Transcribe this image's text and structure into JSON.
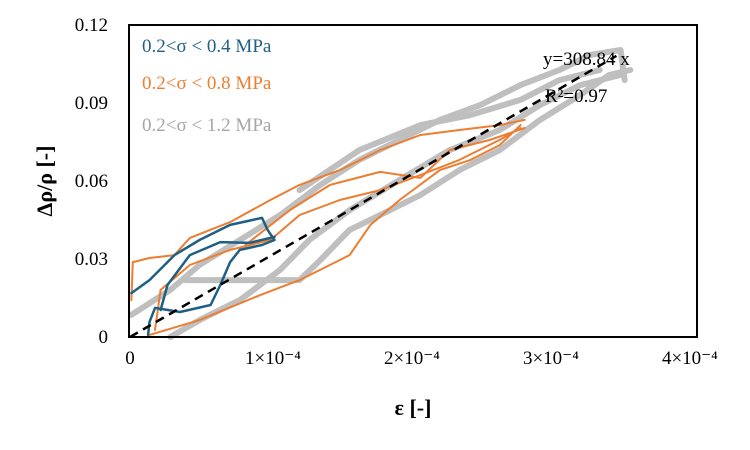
{
  "chart_data": {
    "type": "line",
    "xlabel": "ε [-]",
    "ylabel": "Δρ/ρ [-]",
    "xlim": [
      0,
      0.000408
    ],
    "ylim": [
      0,
      0.12
    ],
    "x_ticks": [
      0,
      0.0001,
      0.0002,
      0.0003,
      0.0004
    ],
    "x_tick_labels": [
      "0",
      "1×10⁻⁴",
      "2×10⁻⁴",
      "3×10⁻⁴",
      "4×10⁻⁴"
    ],
    "y_ticks": [
      0,
      0.03,
      0.06,
      0.09,
      0.12
    ],
    "y_tick_labels": [
      "0",
      "0.03",
      "0.06",
      "0.09",
      "0.12"
    ],
    "grid": false,
    "legend_position": "top-left",
    "series": [
      {
        "name": "0.2<σ < 0.4 MPa",
        "color": "#1f5f86",
        "width": 2.5,
        "curves": [
          {
            "x": [
              1e-06,
              1.4e-05,
              3.2e-05,
              5e-05,
              7.2e-05,
              9.5e-05,
              9.9e-05,
              0.000104,
              9.5e-05,
              7.9e-05,
              7.2e-05,
              6.5e-05,
              5.8e-05,
              3.6e-05,
              1.8e-05,
              1.4e-05,
              1.3e-05
            ],
            "y": [
              0.0169,
              0.0219,
              0.0315,
              0.0373,
              0.0431,
              0.0458,
              0.0412,
              0.0373,
              0.0354,
              0.0335,
              0.0288,
              0.02,
              0.0123,
              0.0096,
              0.0112,
              0.0058,
              0.0008
            ]
          },
          {
            "x": [
              2.2e-05,
              2.7e-05,
              4.3e-05,
              6.5e-05,
              8.6e-05,
              0.000104
            ],
            "y": [
              0.0104,
              0.02,
              0.0315,
              0.0365,
              0.0362,
              0.0385
            ]
          }
        ]
      },
      {
        "name": "0.2<σ < 0.8 MPa",
        "color": "#ed7d31",
        "width": 2,
        "curves": [
          {
            "x": [
              1e-06,
              2e-06,
              1.4e-05,
              3.2e-05,
              4.3e-05,
              7.2e-05,
              0.000101,
              0.000122,
              0.000151,
              0.00018,
              0.000209,
              0.000237,
              0.000266,
              0.000284
            ],
            "y": [
              0.0142,
              0.0288,
              0.0304,
              0.0315,
              0.0381,
              0.0442,
              0.0527,
              0.0585,
              0.0642,
              0.0719,
              0.0777,
              0.0796,
              0.0815,
              0.0835
            ]
          },
          {
            "x": [
              1.4e-05,
              5e-05,
              9.4e-05,
              0.000122,
              0.000158,
              0.000173,
              0.000194,
              0.000223,
              0.000245,
              0.000266,
              0.000281
            ],
            "y": [
              0.0008,
              0.0065,
              0.0162,
              0.0219,
              0.0315,
              0.0431,
              0.0527,
              0.0642,
              0.0681,
              0.0738,
              0.0815
            ]
          },
          {
            "x": [
              1.8e-05,
              2.2e-05,
              4.3e-05,
              7.2e-05,
              0.000101,
              0.000122,
              0.000151,
              0.00018,
              0.000209,
              0.000237,
              0.000266,
              0.000281
            ],
            "y": [
              0.0027,
              0.0181,
              0.0277,
              0.0335,
              0.0373,
              0.0469,
              0.0527,
              0.0565,
              0.0623,
              0.0681,
              0.0758,
              0.0804
            ]
          },
          {
            "x": [
              8.3e-05,
              0.000115,
              0.000144,
              0.00018,
              0.000209,
              0.00023,
              0.000259,
              0.000284
            ],
            "y": [
              0.0354,
              0.0488,
              0.0585,
              0.0635,
              0.0612,
              0.0719,
              0.0758,
              0.0804
            ]
          }
        ]
      },
      {
        "name": "0.2<σ < 1.2 MPa",
        "color": "#bfbfbf",
        "width": 6,
        "curves": [
          {
            "x": [
              1e-06,
              2.9e-05,
              5e-05,
              7.9e-05,
              0.000108,
              0.000137,
              0.000165,
              0.000194,
              0.000223,
              0.000252,
              0.000281,
              0.000309,
              0.000331,
              0.000353,
              0.000356
            ],
            "y": [
              0.0085,
              0.0181,
              0.0277,
              0.0373,
              0.0469,
              0.0585,
              0.0681,
              0.0758,
              0.0835,
              0.0892,
              0.0969,
              0.1027,
              0.1085,
              0.1104,
              0.0988
            ]
          },
          {
            "x": [
              4e-05,
              0.000122,
              0.000137,
              0.000158,
              0.00018,
              0.000209,
              0.000237,
              0.000266,
              0.000295,
              0.000324,
              0.000345,
              0.00036
            ],
            "y": [
              0.0219,
              0.0219,
              0.0296,
              0.0412,
              0.0469,
              0.0546,
              0.0642,
              0.0719,
              0.0835,
              0.0931,
              0.1008,
              0.1027
            ]
          },
          {
            "x": [
              2.9e-05,
              5e-05,
              7.9e-05,
              0.000108,
              0.000129,
              0.000158,
              0.000194,
              0.00023,
              0.000266,
              0.000295,
              0.000324,
              0.000353
            ],
            "y": [
              0,
              0.0065,
              0.0142,
              0.0258,
              0.0373,
              0.0488,
              0.0604,
              0.0719,
              0.0796,
              0.0892,
              0.0969,
              0.1008
            ]
          },
          {
            "x": [
              0.000122,
              0.000165,
              0.000209,
              0.000245,
              0.000281,
              0.000309,
              0.000338
            ],
            "y": [
              0.0565,
              0.0719,
              0.0815,
              0.0854,
              0.0912,
              0.0988,
              0.1027
            ]
          }
        ]
      }
    ],
    "trendline": {
      "slope": 308.84,
      "x_range": [
        0,
        0.00035
      ],
      "color": "#000000",
      "style": "dashed"
    },
    "annotations": {
      "equation": "y=308.84 x",
      "r2": "R²=0.97"
    }
  }
}
